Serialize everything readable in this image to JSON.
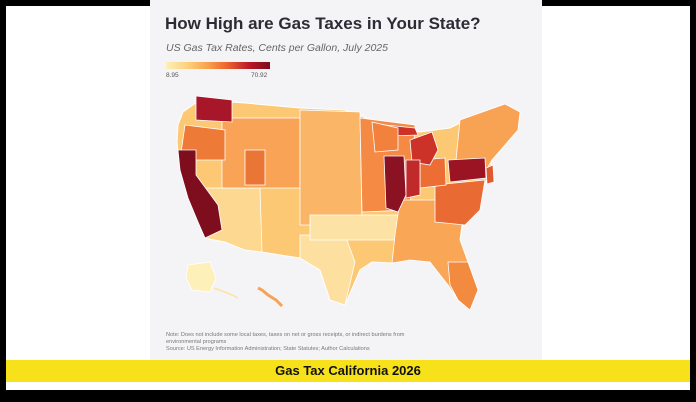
{
  "header": {
    "title": "How High are Gas Taxes in Your State?",
    "subtitle": "US Gas Tax Rates, Cents per Gallon, July 2025"
  },
  "legend": {
    "min_label": "8.95",
    "max_label": "70.92",
    "color_low": "#fdf0b8",
    "color_high": "#7c0d1c"
  },
  "notes": {
    "line1": "Note: Does not include some local taxes, taxes on net or gross receipts, or indirect burdens from",
    "line2": "environmental programs",
    "line3": "Source: US Energy Information Administration; State Statutes; Author Calculations"
  },
  "caption": {
    "text": "Gas Tax California 2026",
    "bar_color": "#f7e11a"
  }
}
